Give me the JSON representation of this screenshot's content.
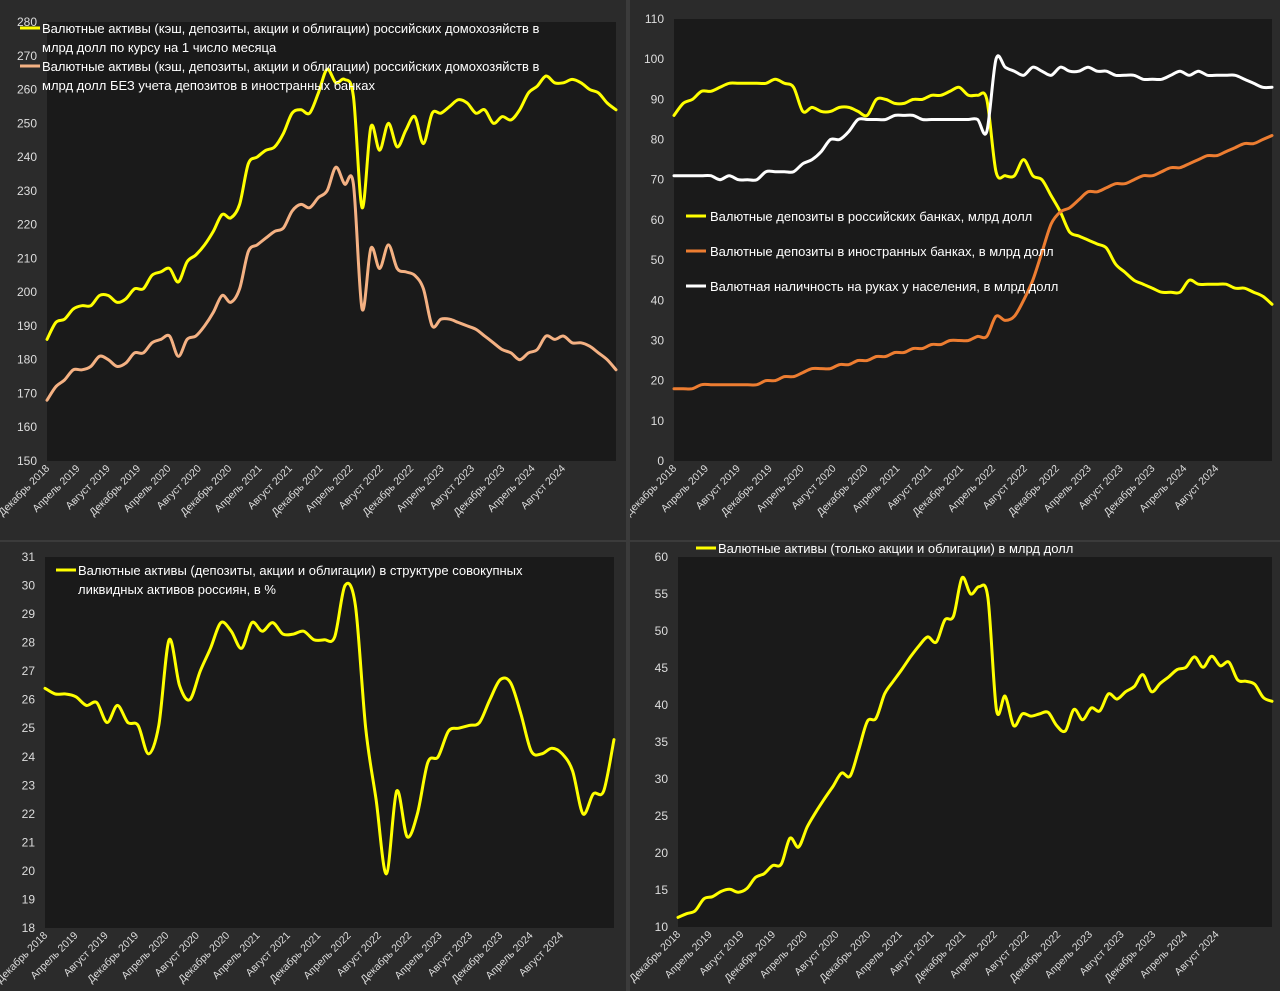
{
  "colors": {
    "background": "#3b3b3b",
    "panel": "#2b2b2b",
    "plot_area": "#1a1a1a",
    "yellow": "#ffff00",
    "salmon": "#f4b183",
    "orange": "#ed7d31",
    "white": "#ffffff",
    "text": "#dddddd"
  },
  "chart_data": [
    {
      "type": "line",
      "x_start": "2018-12",
      "x_end": "2025-03",
      "xticks": [
        "Декабрь 2018",
        "Апрель 2019",
        "Август 2019",
        "Декабрь 2019",
        "Апрель 2020",
        "Август 2020",
        "Декабрь 2020",
        "Апрель 2021",
        "Август 2021",
        "Декабрь 2021",
        "Апрель 2022",
        "Август 2022",
        "Декабрь 2022",
        "Апрель 2023",
        "Август 2023",
        "Декабрь 2023",
        "Апрель 2024",
        "Август 2024"
      ],
      "ylim": [
        150,
        280
      ],
      "yticks": [
        150,
        160,
        170,
        180,
        190,
        200,
        210,
        220,
        230,
        240,
        250,
        260,
        270,
        280
      ],
      "legend": [
        "Валютные активы (кэш, депозиты, акции и облигации) российских домохозяйств в",
        "млрд долл по курсу на 1 число месяца",
        "Валютные активы (кэш, депозиты, акции и облигации) российских домохозяйств в",
        "млрд долл БЕЗ учета депозитов в иностранных банках"
      ],
      "series": [
        {
          "color": "#ffff00",
          "values": [
            186,
            191,
            192,
            195,
            196,
            196,
            199,
            199,
            197,
            198,
            201,
            201,
            205,
            206,
            207,
            203,
            209,
            211,
            214,
            218,
            223,
            222,
            226,
            238,
            240,
            242,
            243,
            247,
            253,
            254,
            253,
            259,
            266,
            262,
            263,
            258,
            225,
            249,
            242,
            250,
            243,
            248,
            252,
            244,
            253,
            253,
            255,
            257,
            256,
            253,
            254,
            250,
            252,
            251,
            254,
            259,
            261,
            264,
            262,
            262,
            263,
            262,
            260,
            259,
            256,
            254
          ]
        },
        {
          "color": "#f4b183",
          "values": [
            168,
            172,
            174,
            177,
            177,
            178,
            181,
            180,
            178,
            179,
            182,
            182,
            185,
            186,
            187,
            181,
            186,
            187,
            190,
            194,
            199,
            197,
            201,
            212,
            214,
            216,
            218,
            219,
            224,
            226,
            225,
            228,
            230,
            237,
            232,
            232,
            195,
            213,
            207,
            214,
            207,
            206,
            205,
            201,
            190,
            192,
            192,
            191,
            190,
            189,
            187,
            185,
            183,
            182,
            180,
            182,
            183,
            187,
            186,
            187,
            185,
            185,
            184,
            182,
            180,
            177
          ]
        }
      ]
    },
    {
      "type": "line",
      "x_start": "2018-12",
      "x_end": "2025-03",
      "xticks": [
        "Декабрь 2018",
        "Апрель 2019",
        "Август 2019",
        "Декабрь 2019",
        "Апрель 2020",
        "Август 2020",
        "Декабрь 2020",
        "Апрель 2021",
        "Август 2021",
        "Декабрь 2021",
        "Апрель 2022",
        "Август 2022",
        "Декабрь 2022",
        "Апрель 2023",
        "Август 2023",
        "Декабрь 2023",
        "Апрель 2024",
        "Август 2024"
      ],
      "ylim": [
        0,
        110
      ],
      "yticks": [
        0,
        10,
        20,
        30,
        40,
        50,
        60,
        70,
        80,
        90,
        100,
        110
      ],
      "series": [
        {
          "name": "Валютные депозиты в российских банках, млрд долл",
          "color": "#ffff00",
          "values": [
            86,
            89,
            90,
            92,
            92,
            93,
            94,
            94,
            94,
            94,
            94,
            95,
            94,
            93,
            87,
            88,
            87,
            87,
            88,
            88,
            87,
            86,
            90,
            90,
            89,
            89,
            90,
            90,
            91,
            91,
            92,
            93,
            91,
            91,
            90,
            72,
            71,
            71,
            75,
            71,
            70,
            66,
            62,
            57,
            56,
            55,
            54,
            53,
            49,
            47,
            45,
            44,
            43,
            42,
            42,
            42,
            45,
            44,
            44,
            44,
            44,
            43,
            43,
            42,
            41,
            39
          ]
        },
        {
          "name": "Валютные депозиты в иностранных банках, в млрд долл",
          "color": "#ed7d31",
          "values": [
            18,
            18,
            18,
            19,
            19,
            19,
            19,
            19,
            19,
            19,
            20,
            20,
            21,
            21,
            22,
            23,
            23,
            23,
            24,
            24,
            25,
            25,
            26,
            26,
            27,
            27,
            28,
            28,
            29,
            29,
            30,
            30,
            30,
            31,
            31,
            36,
            35,
            36,
            40,
            45,
            52,
            59,
            62,
            63,
            65,
            67,
            67,
            68,
            69,
            69,
            70,
            71,
            71,
            72,
            73,
            73,
            74,
            75,
            76,
            76,
            77,
            78,
            79,
            79,
            80,
            81
          ]
        },
        {
          "name": "Валютная наличность на руках у населения, в млрд долл",
          "color": "#ffffff",
          "values": [
            71,
            71,
            71,
            71,
            71,
            70,
            71,
            70,
            70,
            70,
            72,
            72,
            72,
            72,
            74,
            75,
            77,
            80,
            80,
            82,
            85,
            85,
            85,
            85,
            86,
            86,
            86,
            85,
            85,
            85,
            85,
            85,
            85,
            85,
            82,
            100,
            98,
            97,
            96,
            98,
            97,
            96,
            98,
            97,
            97,
            98,
            97,
            97,
            96,
            96,
            96,
            95,
            95,
            95,
            96,
            97,
            96,
            97,
            96,
            96,
            96,
            96,
            95,
            94,
            93,
            93
          ]
        }
      ]
    },
    {
      "type": "line",
      "x_start": "2018-12",
      "x_end": "2025-03",
      "xticks": [
        "Декабрь 2018",
        "Апрель 2019",
        "Август 2019",
        "Декабрь 2019",
        "Апрель 2020",
        "Август 2020",
        "Декабрь 2020",
        "Апрель 2021",
        "Август 2021",
        "Декабрь 2021",
        "Апрель 2022",
        "Август 2022",
        "Декабрь 2022",
        "Апрель 2023",
        "Август 2023",
        "Декабрь 2023",
        "Апрель 2024",
        "Август 2024"
      ],
      "ylim": [
        18,
        31
      ],
      "yticks": [
        18,
        19,
        20,
        21,
        22,
        23,
        24,
        25,
        26,
        27,
        28,
        29,
        30,
        31
      ],
      "legend": [
        "Валютные активы (депозиты, акции и облигации) в структуре совокупных",
        "ликвидных активов россиян, в %"
      ],
      "series": [
        {
          "color": "#ffff00",
          "values": [
            26.4,
            26.2,
            26.2,
            26.1,
            25.8,
            25.9,
            25.2,
            25.8,
            25.2,
            25.1,
            24.1,
            25.1,
            28.1,
            26.5,
            26.0,
            27.0,
            27.8,
            28.7,
            28.4,
            27.8,
            28.7,
            28.4,
            28.7,
            28.3,
            28.3,
            28.4,
            28.1,
            28.1,
            28.2,
            30.0,
            29.3,
            25.0,
            22.5,
            19.9,
            22.8,
            21.2,
            22.0,
            23.8,
            24.0,
            24.9,
            25.0,
            25.1,
            25.2,
            26.0,
            26.7,
            26.6,
            25.5,
            24.2,
            24.1,
            24.3,
            24.1,
            23.5,
            22.0,
            22.7,
            22.8,
            24.6
          ]
        }
      ]
    },
    {
      "type": "line",
      "x_start": "2018-12",
      "x_end": "2025-03",
      "xticks": [
        "Декабрь 2018",
        "Апрель 2019",
        "Август 2019",
        "Декабрь 2019",
        "Апрель 2020",
        "Август 2020",
        "Декабрь 2020",
        "Апрель 2021",
        "Август 2021",
        "Декабрь 2021",
        "Апрель 2022",
        "Август 2022",
        "Декабрь 2022",
        "Апрель 2023",
        "Август 2023",
        "Декабрь 2023",
        "Апрель 2024",
        "Август 2024"
      ],
      "ylim": [
        10,
        60
      ],
      "yticks": [
        10,
        15,
        20,
        25,
        30,
        35,
        40,
        45,
        50,
        55,
        60
      ],
      "legend": [
        "Валютные активы (только акции и облигации) в млрд долл"
      ],
      "series": [
        {
          "color": "#ffff00",
          "values": [
            11.3,
            11.8,
            12.2,
            13.8,
            14.1,
            14.8,
            15.1,
            14.7,
            15.2,
            16.7,
            17.2,
            18.3,
            18.5,
            22.0,
            20.8,
            23.5,
            25.5,
            27.3,
            29.0,
            30.8,
            30.4,
            34.0,
            37.8,
            38.2,
            41.5,
            43.2,
            44.8,
            46.5,
            48.0,
            49.2,
            48.5,
            51.5,
            52.0,
            57.2,
            55.0,
            56.0,
            54.5,
            39.3,
            41.2,
            37.2,
            38.8,
            38.5,
            38.8,
            39.0,
            37.2,
            36.5,
            39.4,
            38.0,
            39.6,
            39.2,
            41.5,
            40.8,
            41.8,
            42.5,
            44.1,
            41.8,
            42.9,
            43.8,
            44.8,
            45.1,
            46.5,
            45.1,
            46.6,
            45.3,
            45.8,
            43.4,
            43.2,
            42.8,
            41.0,
            40.5
          ]
        }
      ]
    }
  ]
}
